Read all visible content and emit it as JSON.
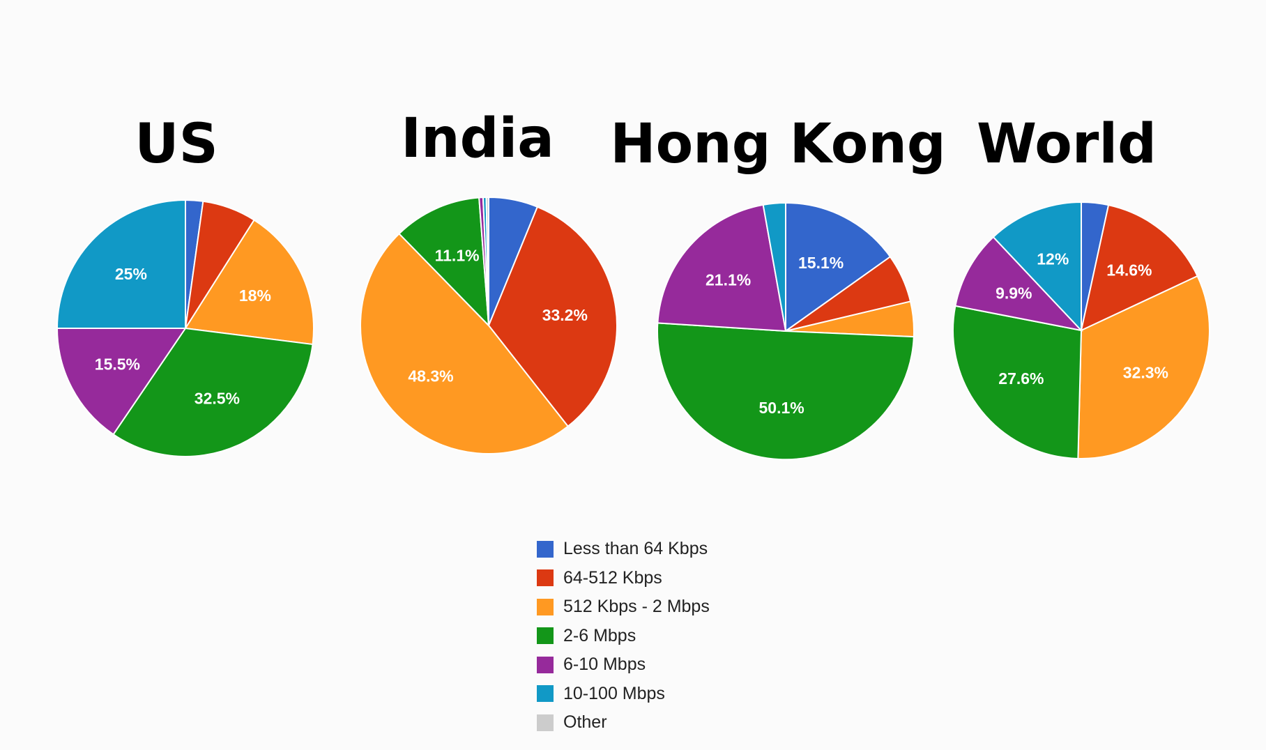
{
  "chart_data": [
    {
      "type": "pie",
      "title": "US",
      "slices": [
        {
          "category": "Less than 64 Kbps",
          "value": 2.2,
          "label": ""
        },
        {
          "category": "64-512 Kbps",
          "value": 6.8,
          "label": ""
        },
        {
          "category": "512 Kbps - 2 Mbps",
          "value": 18.0,
          "label": "18%"
        },
        {
          "category": "2-6 Mbps",
          "value": 32.5,
          "label": "32.5%"
        },
        {
          "category": "6-10 Mbps",
          "value": 15.5,
          "label": "15.5%"
        },
        {
          "category": "10-100 Mbps",
          "value": 25.0,
          "label": "25%"
        }
      ]
    },
    {
      "type": "pie",
      "title": "India",
      "slices": [
        {
          "category": "Less than 64 Kbps",
          "value": 6.2,
          "label": ""
        },
        {
          "category": "64-512 Kbps",
          "value": 33.2,
          "label": "33.2%"
        },
        {
          "category": "512 Kbps - 2 Mbps",
          "value": 48.3,
          "label": "48.3%"
        },
        {
          "category": "2-6 Mbps",
          "value": 11.1,
          "label": "11.1%"
        },
        {
          "category": "6-10 Mbps",
          "value": 0.5,
          "label": ""
        },
        {
          "category": "10-100 Mbps",
          "value": 0.4,
          "label": ""
        },
        {
          "category": "Other",
          "value": 0.3,
          "label": ""
        }
      ]
    },
    {
      "type": "pie",
      "title": "Hong Kong",
      "slices": [
        {
          "category": "Less than 64 Kbps",
          "value": 15.1,
          "label": "15.1%"
        },
        {
          "category": "64-512 Kbps",
          "value": 6.1,
          "label": ""
        },
        {
          "category": "512 Kbps - 2 Mbps",
          "value": 4.4,
          "label": ""
        },
        {
          "category": "2-6 Mbps",
          "value": 50.1,
          "label": "50.1%"
        },
        {
          "category": "6-10 Mbps",
          "value": 21.1,
          "label": "21.1%"
        },
        {
          "category": "10-100 Mbps",
          "value": 2.8,
          "label": ""
        }
      ]
    },
    {
      "type": "pie",
      "title": "World",
      "slices": [
        {
          "category": "Less than 64 Kbps",
          "value": 3.4,
          "label": ""
        },
        {
          "category": "64-512 Kbps",
          "value": 14.6,
          "label": "14.6%"
        },
        {
          "category": "512 Kbps - 2 Mbps",
          "value": 32.3,
          "label": "32.3%"
        },
        {
          "category": "2-6 Mbps",
          "value": 27.6,
          "label": "27.6%"
        },
        {
          "category": "6-10 Mbps",
          "value": 9.9,
          "label": "9.9%"
        },
        {
          "category": "10-100 Mbps",
          "value": 12.0,
          "label": "12%"
        }
      ]
    }
  ],
  "legend": [
    {
      "label": "Less than 64 Kbps",
      "color": "#3366cc"
    },
    {
      "label": "64-512 Kbps",
      "color": "#dc3912"
    },
    {
      "label": "512 Kbps - 2 Mbps",
      "color": "#ff9922"
    },
    {
      "label": "2-6 Mbps",
      "color": "#139619"
    },
    {
      "label": "6-10 Mbps",
      "color": "#962a9b"
    },
    {
      "label": "10-100 Mbps",
      "color": "#1199c6"
    },
    {
      "label": "Other",
      "color": "#cccccc"
    }
  ]
}
